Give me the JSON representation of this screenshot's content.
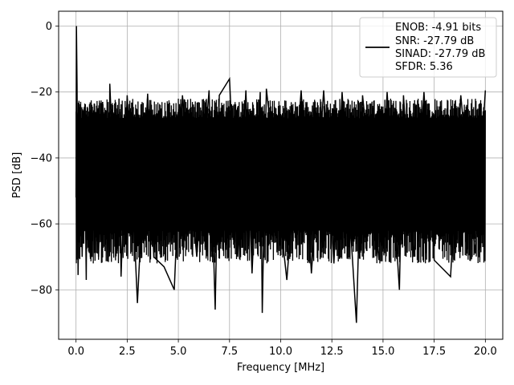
{
  "chart_data": {
    "type": "line",
    "xlabel": "Frequency [MHz]",
    "ylabel": "PSD [dB]",
    "xlim": [
      -0.85,
      20.85
    ],
    "ylim": [
      -95,
      4.5
    ],
    "grid": true,
    "xticks": [
      0.0,
      2.5,
      5.0,
      7.5,
      10.0,
      12.5,
      15.0,
      17.5,
      20.0
    ],
    "xtick_labels": [
      "0.0",
      "2.5",
      "5.0",
      "7.5",
      "10.0",
      "12.5",
      "15.0",
      "17.5",
      "20.0"
    ],
    "yticks": [
      0,
      -20,
      -40,
      -60,
      -80
    ],
    "ytick_labels": [
      "0",
      "−20",
      "−40",
      "−60",
      "−80"
    ],
    "series": [
      {
        "color": "#000000",
        "x_range": [
          0.0,
          20.0
        ],
        "dense_noise": true,
        "noise_upper_db": -22,
        "noise_lower_db": -62,
        "x": [
          0.0,
          0.02,
          0.05,
          0.1,
          0.2,
          0.3,
          0.4,
          0.5,
          0.55,
          0.7,
          0.9,
          1.1,
          1.3,
          1.6,
          1.65,
          2.0,
          2.1,
          2.2,
          2.5,
          2.9,
          3.0,
          3.5,
          3.8,
          4.3,
          4.8,
          5.2,
          5.9,
          6.5,
          6.8,
          7.0,
          7.5,
          7.9,
          8.3,
          8.6,
          9.0,
          9.1,
          9.3,
          10.3,
          11.0,
          11.5,
          12.1,
          12.6,
          13.0,
          13.7,
          14.0,
          14.8,
          15.2,
          15.8,
          16.0,
          16.5,
          17.0,
          17.5,
          18.3,
          18.8,
          19.5,
          20.0
        ],
        "y": [
          -52,
          0,
          -18,
          -75.5,
          -26,
          -70,
          -25,
          -77,
          -24.5,
          -70,
          -23.5,
          -70,
          -23,
          -70,
          -17.5,
          -69,
          -22,
          -76,
          -21,
          -70,
          -84,
          -20.5,
          -70,
          -73,
          -80,
          -21,
          -70,
          -19.5,
          -86,
          -21,
          -16,
          -70,
          -19.5,
          -75,
          -20,
          -87,
          -19,
          -77,
          -19.5,
          -75,
          -19.5,
          -72,
          -20,
          -90,
          -21,
          -71,
          -20,
          -80,
          -21,
          -70,
          -20,
          -71,
          -76,
          -21,
          -69,
          -19.5
        ]
      }
    ],
    "legend": {
      "position": "upper right",
      "entries": [
        "ENOB: -4.91 bits",
        "SNR: -27.79 dB",
        "SINAD: -27.79 dB",
        "SFDR: 5.36"
      ]
    }
  }
}
